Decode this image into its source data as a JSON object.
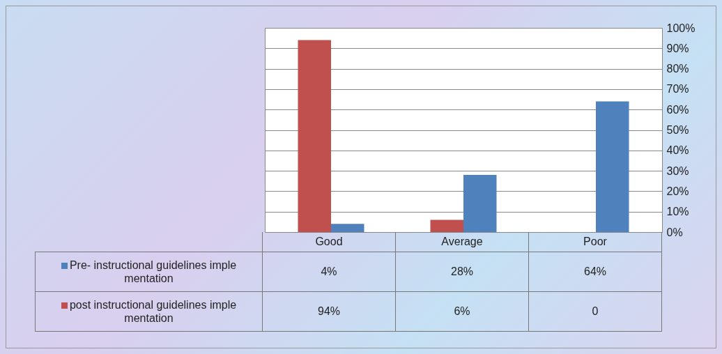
{
  "chart_data": {
    "type": "bar",
    "categories": [
      "Good",
      "Average",
      "Poor"
    ],
    "series": [
      {
        "name": "Pre- instructional guidelines imple mentation",
        "color": "#4f81bd",
        "values": [
          4,
          28,
          64
        ],
        "value_labels": [
          "4%",
          "28%",
          "64%"
        ]
      },
      {
        "name": "post instructional guidelines imple mentation",
        "color": "#c0504d",
        "values": [
          94,
          6,
          0
        ],
        "value_labels": [
          "94%",
          "6%",
          "0"
        ]
      }
    ],
    "ylim": [
      0,
      100
    ],
    "yticks": [
      {
        "value": 0,
        "label": "0%"
      },
      {
        "value": 10,
        "label": "10%"
      },
      {
        "value": 20,
        "label": "20%"
      },
      {
        "value": 30,
        "label": "30%"
      },
      {
        "value": 40,
        "label": "40%"
      },
      {
        "value": 50,
        "label": "50%"
      },
      {
        "value": 60,
        "label": "60%"
      },
      {
        "value": 70,
        "label": "70%"
      },
      {
        "value": 80,
        "label": "80%"
      },
      {
        "value": 90,
        "label": "90%"
      },
      {
        "value": 100,
        "label": "100%"
      }
    ],
    "grid": "y",
    "legend": "bottom"
  }
}
